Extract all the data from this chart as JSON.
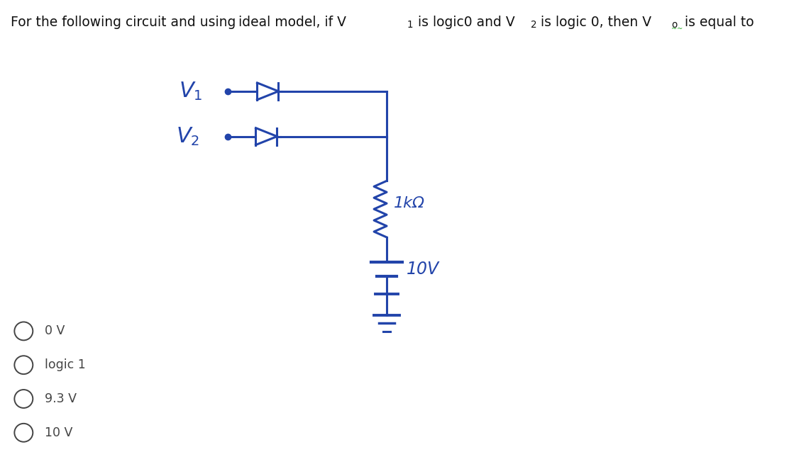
{
  "choices": [
    "0 V",
    "logic 1",
    "9.3 V",
    "10 V"
  ],
  "bg_color": "#ffffff",
  "text_color": "#333333",
  "circuit_color": "#2244aa",
  "figsize": [
    11.12,
    6.55
  ],
  "dpi": 100,
  "title_fontsize": 13.5,
  "circuit_lw": 2.2,
  "choice_fontsize": 12.5,
  "choice_text_color": "#444444"
}
